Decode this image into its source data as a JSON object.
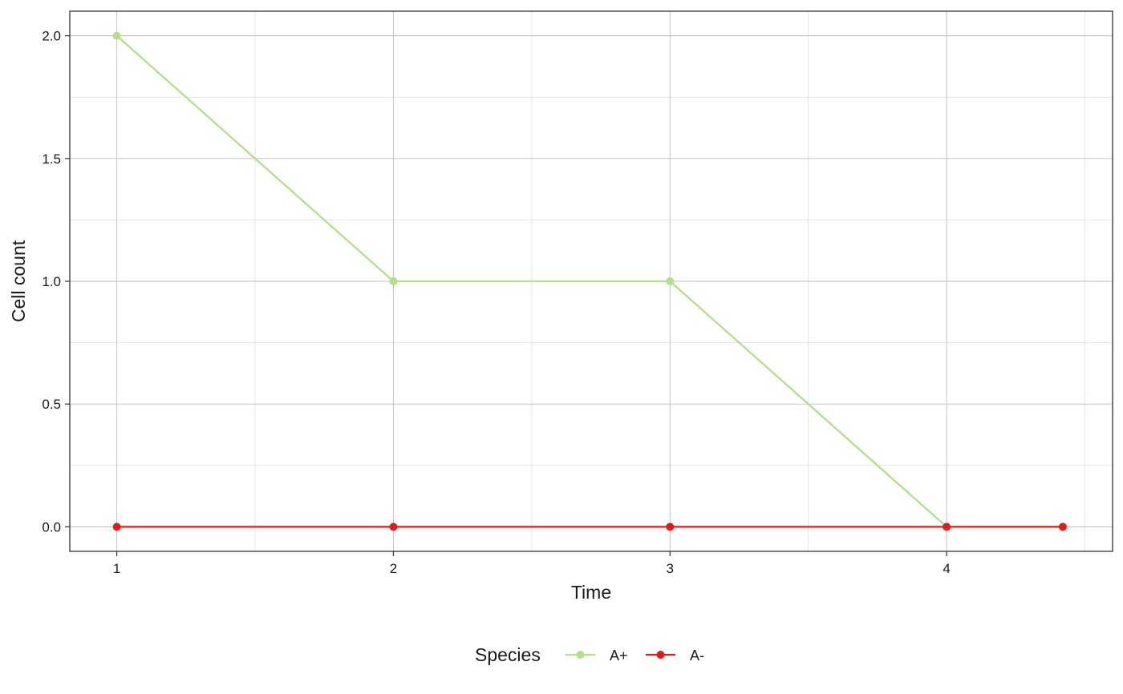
{
  "chart_data": {
    "type": "line",
    "xlabel": "Time",
    "ylabel": "Cell count",
    "xlim": [
      0.83,
      4.6
    ],
    "ylim": [
      -0.1,
      2.1
    ],
    "x_ticks": [
      1,
      2,
      3,
      4
    ],
    "x_tick_labels": [
      "1",
      "2",
      "3",
      "4"
    ],
    "x_minor_ticks": [
      1.5,
      2.5,
      3.5,
      4.5
    ],
    "y_ticks": [
      0.0,
      0.5,
      1.0,
      1.5,
      2.0
    ],
    "y_tick_labels": [
      "0.0",
      "0.5",
      "1.0",
      "1.5",
      "2.0"
    ],
    "y_minor_ticks": [
      0.25,
      0.75,
      1.25,
      1.75
    ],
    "grid": true,
    "legend": {
      "title": "Species",
      "position": "bottom"
    },
    "series": [
      {
        "name": "A+",
        "color": "#b2df8a",
        "x": [
          1,
          2,
          3,
          4,
          4.42
        ],
        "values": [
          2,
          1,
          1,
          0,
          0
        ]
      },
      {
        "name": "A-",
        "color": "#e31a1c",
        "x": [
          1,
          2,
          3,
          4,
          4.42
        ],
        "values": [
          0,
          0,
          0,
          0,
          0
        ]
      }
    ]
  }
}
